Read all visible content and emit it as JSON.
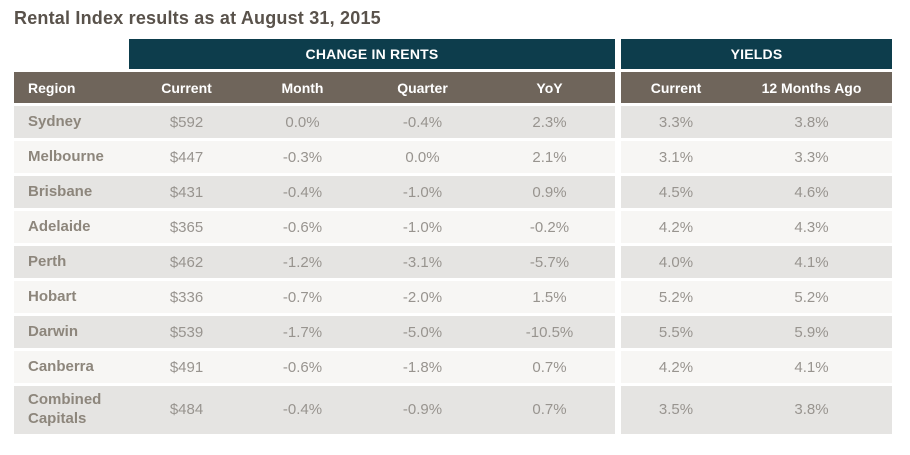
{
  "title": "Rental Index results as at August 31, 2015",
  "chart_data": {
    "type": "table",
    "title": "Rental Index results as at August 31, 2015",
    "group_headers": {
      "change_in_rents": "CHANGE IN RENTS",
      "yields": "YIELDS"
    },
    "columns": {
      "region": "Region",
      "rent_current": "Current",
      "rent_month": "Month",
      "rent_quarter": "Quarter",
      "rent_yoy": "YoY",
      "yield_current": "Current",
      "yield_12_months_ago": "12 Months Ago"
    },
    "rows": [
      {
        "region": "Sydney",
        "rent_current": "$592",
        "rent_month": "0.0%",
        "rent_quarter": "-0.4%",
        "rent_yoy": "2.3%",
        "yield_current": "3.3%",
        "yield_12_months_ago": "3.8%"
      },
      {
        "region": "Melbourne",
        "rent_current": "$447",
        "rent_month": "-0.3%",
        "rent_quarter": "0.0%",
        "rent_yoy": "2.1%",
        "yield_current": "3.1%",
        "yield_12_months_ago": "3.3%"
      },
      {
        "region": "Brisbane",
        "rent_current": "$431",
        "rent_month": "-0.4%",
        "rent_quarter": "-1.0%",
        "rent_yoy": "0.9%",
        "yield_current": "4.5%",
        "yield_12_months_ago": "4.6%"
      },
      {
        "region": "Adelaide",
        "rent_current": "$365",
        "rent_month": "-0.6%",
        "rent_quarter": "-1.0%",
        "rent_yoy": "-0.2%",
        "yield_current": "4.2%",
        "yield_12_months_ago": "4.3%"
      },
      {
        "region": "Perth",
        "rent_current": "$462",
        "rent_month": "-1.2%",
        "rent_quarter": "-3.1%",
        "rent_yoy": "-5.7%",
        "yield_current": "4.0%",
        "yield_12_months_ago": "4.1%"
      },
      {
        "region": "Hobart",
        "rent_current": "$336",
        "rent_month": "-0.7%",
        "rent_quarter": "-2.0%",
        "rent_yoy": "1.5%",
        "yield_current": "5.2%",
        "yield_12_months_ago": "5.2%"
      },
      {
        "region": "Darwin",
        "rent_current": "$539",
        "rent_month": "-1.7%",
        "rent_quarter": "-5.0%",
        "rent_yoy": "-10.5%",
        "yield_current": "5.5%",
        "yield_12_months_ago": "5.9%"
      },
      {
        "region": "Canberra",
        "rent_current": "$491",
        "rent_month": "-0.6%",
        "rent_quarter": "-1.8%",
        "rent_yoy": "0.7%",
        "yield_current": "4.2%",
        "yield_12_months_ago": "4.1%"
      },
      {
        "region": "Combined Capitals",
        "rent_current": "$484",
        "rent_month": "-0.4%",
        "rent_quarter": "-0.9%",
        "rent_yoy": "0.7%",
        "yield_current": "3.5%",
        "yield_12_months_ago": "3.8%"
      }
    ]
  },
  "colors": {
    "banner_background": "#0d3d4c",
    "column_header_background": "#6f655b",
    "row_odd_background": "#e5e4e2",
    "row_even_background": "#f7f6f4",
    "region_text": "#8d867c",
    "value_text": "#98948f",
    "title_text": "#59524b",
    "header_text": "#ffffff"
  }
}
